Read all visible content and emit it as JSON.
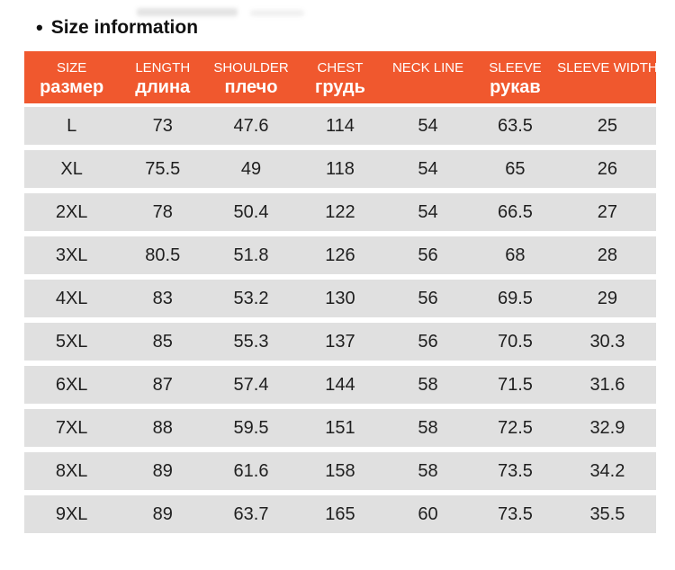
{
  "page": {
    "bullet": "•",
    "title": "Size information"
  },
  "colors": {
    "header_bg": "#f0582e",
    "header_text": "#ffffff",
    "row_bg": "#e0e0e0",
    "row_text": "#1f1f1f",
    "title_text": "#111111"
  },
  "table": {
    "header": {
      "columns": [
        {
          "en": "SIZE",
          "ru": "размер"
        },
        {
          "en": "LENGTH",
          "ru": "длина"
        },
        {
          "en": "SHOULDER",
          "ru": "плечо"
        },
        {
          "en": "CHEST",
          "ru": "грудь"
        },
        {
          "en": "NECK LINE",
          "ru": ""
        },
        {
          "en": "SLEEVE",
          "ru": "рукав"
        },
        {
          "en": "SLEEVE WIDTH",
          "ru": ""
        }
      ]
    },
    "rows": [
      [
        "L",
        "73",
        "47.6",
        "114",
        "54",
        "63.5",
        "25"
      ],
      [
        "XL",
        "75.5",
        "49",
        "118",
        "54",
        "65",
        "26"
      ],
      [
        "2XL",
        "78",
        "50.4",
        "122",
        "54",
        "66.5",
        "27"
      ],
      [
        "3XL",
        "80.5",
        "51.8",
        "126",
        "56",
        "68",
        "28"
      ],
      [
        "4XL",
        "83",
        "53.2",
        "130",
        "56",
        "69.5",
        "29"
      ],
      [
        "5XL",
        "85",
        "55.3",
        "137",
        "56",
        "70.5",
        "30.3"
      ],
      [
        "6XL",
        "87",
        "57.4",
        "144",
        "58",
        "71.5",
        "31.6"
      ],
      [
        "7XL",
        "88",
        "59.5",
        "151",
        "58",
        "72.5",
        "32.9"
      ],
      [
        "8XL",
        "89",
        "61.6",
        "158",
        "58",
        "73.5",
        "34.2"
      ],
      [
        "9XL",
        "89",
        "63.7",
        "165",
        "60",
        "73.5",
        "35.5"
      ]
    ]
  }
}
